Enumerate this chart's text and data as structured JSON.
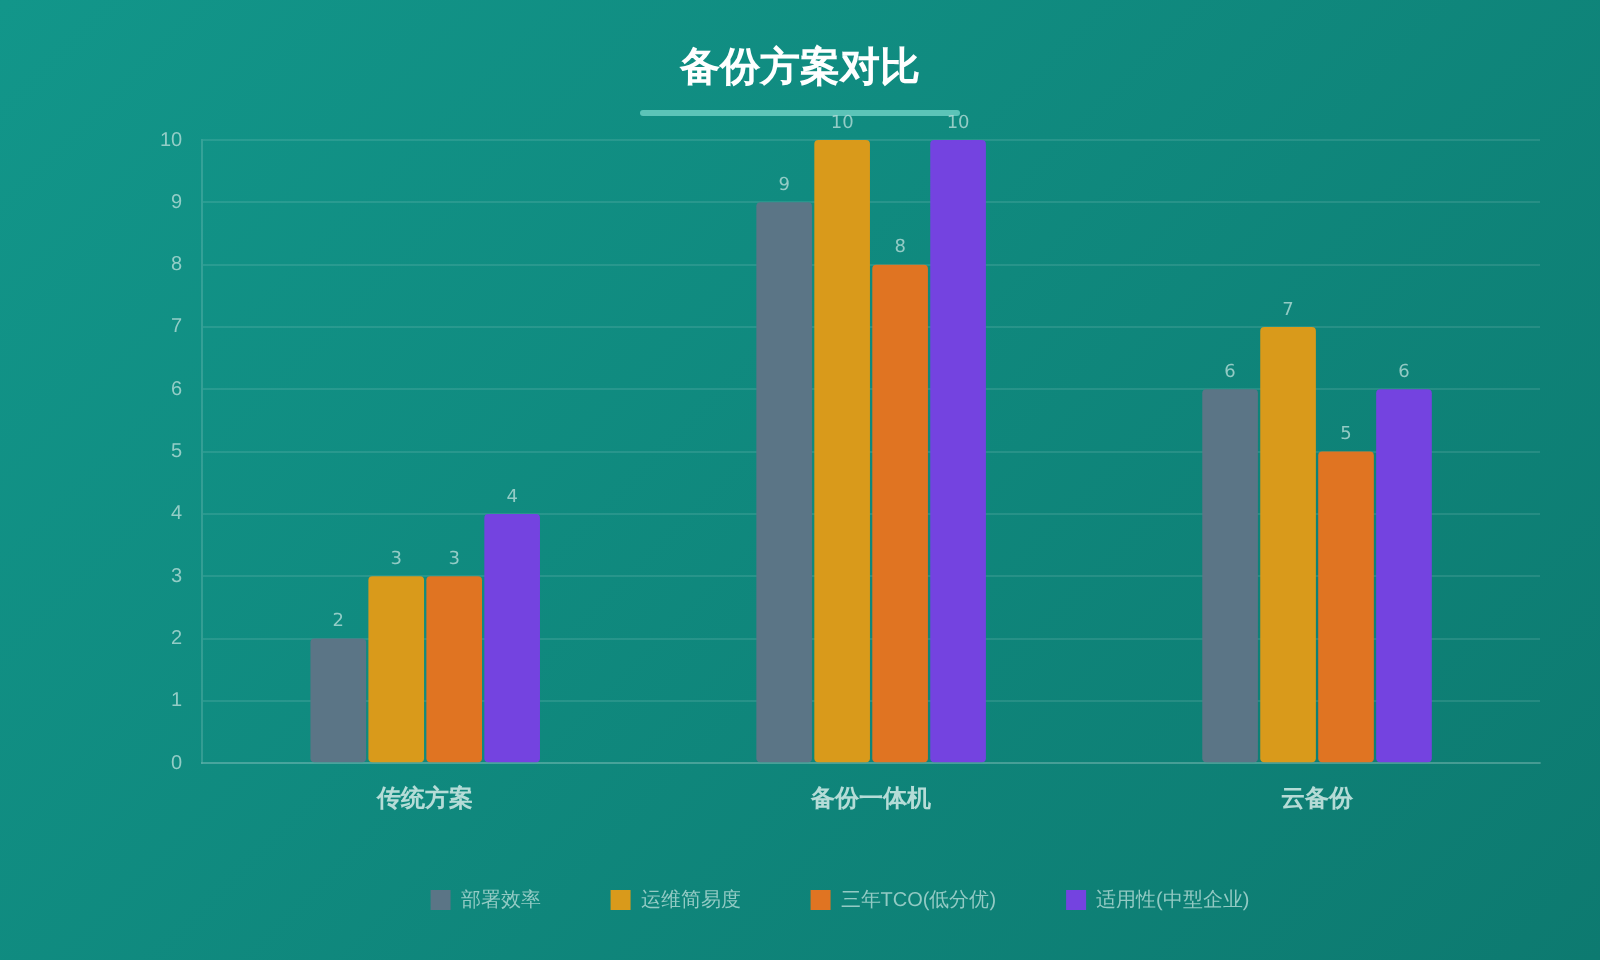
{
  "chart_data": {
    "type": "bar",
    "title": "备份方案对比",
    "categories": [
      "传统方案",
      "备份一体机",
      "云备份"
    ],
    "series": [
      {
        "name": "部署效率",
        "color": "#5b7586",
        "values": [
          2,
          9,
          6
        ]
      },
      {
        "name": "运维简易度",
        "color": "#d99a1b",
        "values": [
          3,
          10,
          7
        ]
      },
      {
        "name": "三年TCO(低分优)",
        "color": "#e07422",
        "values": [
          3,
          8,
          5
        ]
      },
      {
        "name": "适用性(中型企业)",
        "color": "#7443e0",
        "values": [
          4,
          10,
          6
        ]
      }
    ],
    "ylim": [
      0,
      10
    ],
    "yticks": [
      0,
      1,
      2,
      3,
      4,
      5,
      6,
      7,
      8,
      9,
      10
    ],
    "grid": "y",
    "legend": "bottom",
    "data_labels": true
  }
}
